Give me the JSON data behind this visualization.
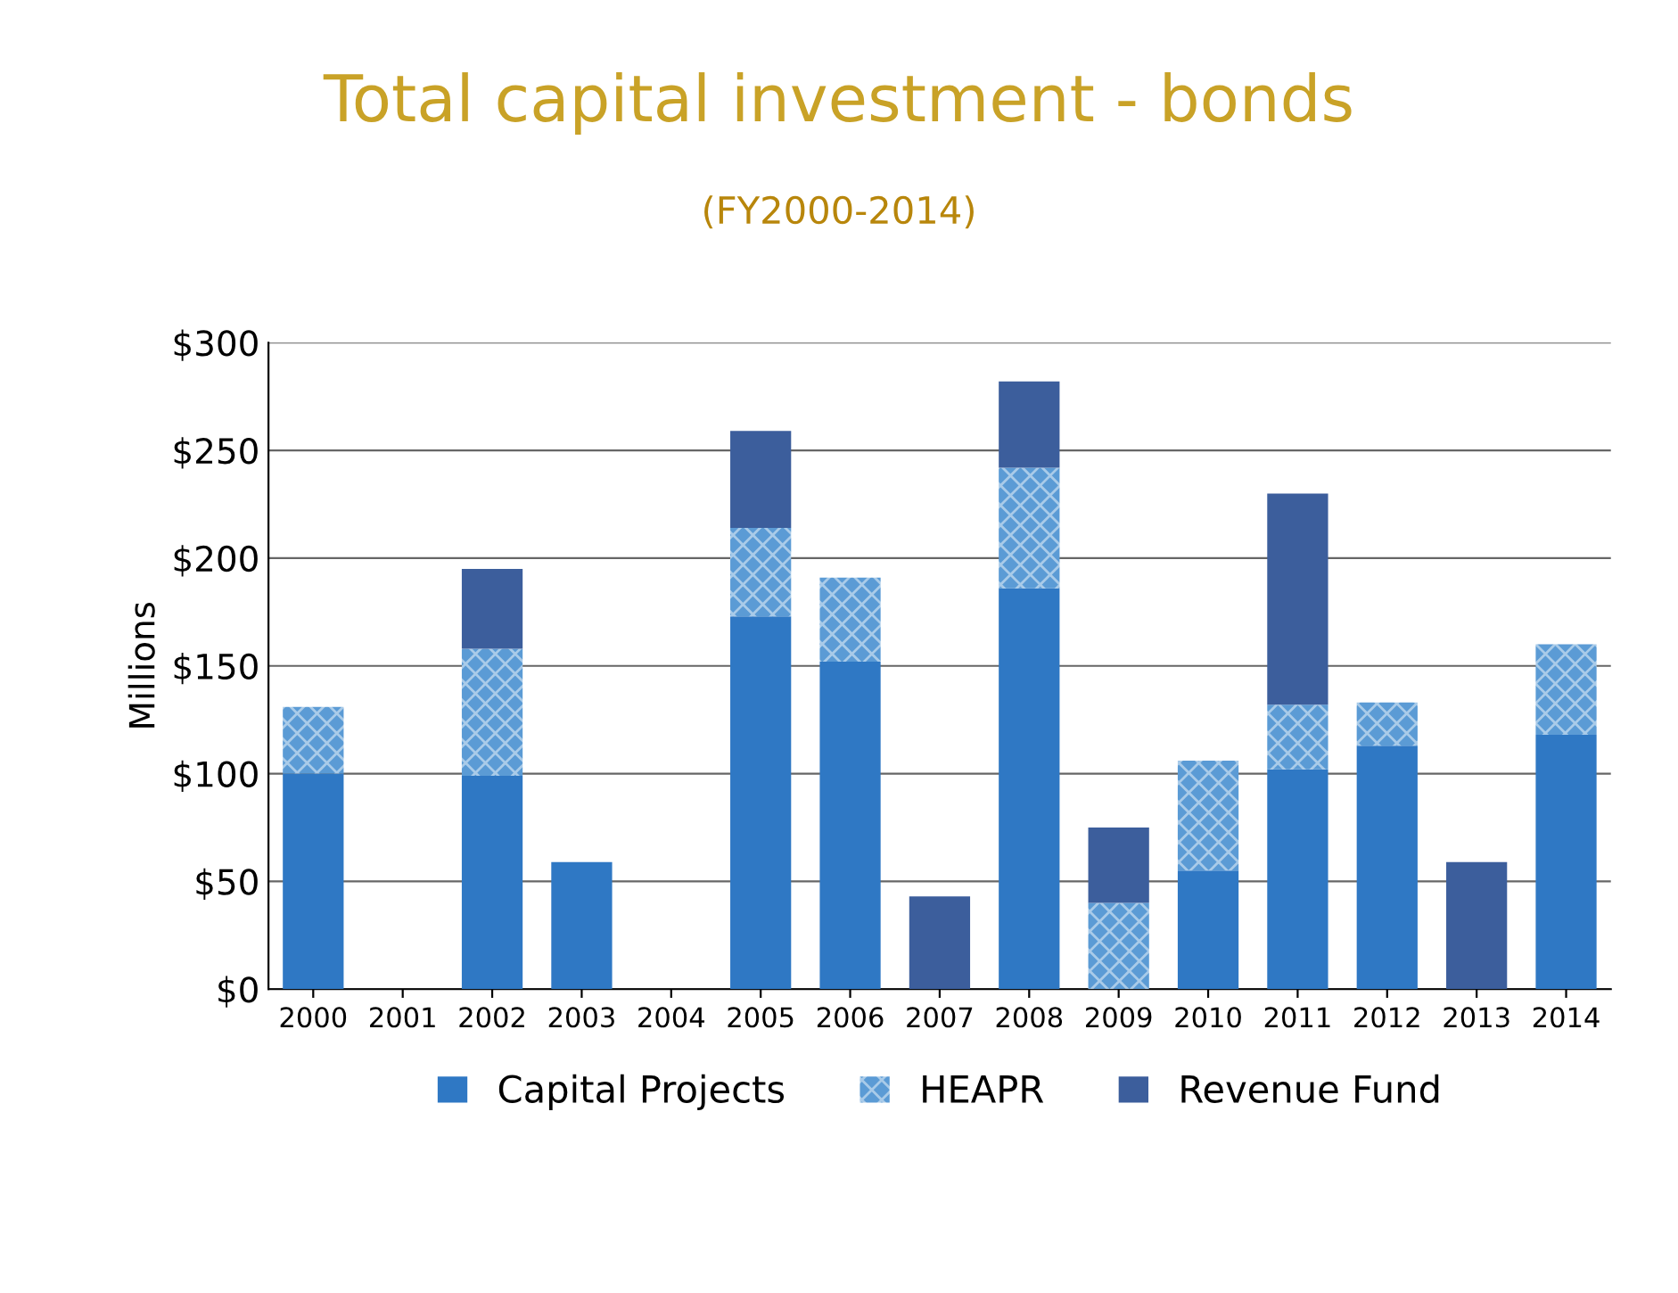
{
  "chart_data": {
    "type": "bar",
    "title": "Total capital investment - bonds",
    "subtitle": "(FY2000-2014)",
    "ylabel": "Millions",
    "stacked": true,
    "grid": "y",
    "legend": "bottom",
    "categories": [
      "2000",
      "2001",
      "2002",
      "2003",
      "2004",
      "2005",
      "2006",
      "2007",
      "2008",
      "2009",
      "2010",
      "2011",
      "2012",
      "2013",
      "2014"
    ],
    "ylim": [
      0,
      300
    ],
    "yticks": [
      {
        "value": 0,
        "label": "$0"
      },
      {
        "value": 50,
        "label": "$50"
      },
      {
        "value": 100,
        "label": "$100"
      },
      {
        "value": 150,
        "label": "$150"
      },
      {
        "value": 200,
        "label": "$200"
      },
      {
        "value": 250,
        "label": "$250"
      },
      {
        "value": 300,
        "label": "$300"
      }
    ],
    "series": [
      {
        "name": "Capital Projects",
        "color": "#2f78c4",
        "values": [
          100,
          0,
          99,
          59,
          0,
          173,
          152,
          0,
          186,
          0,
          55,
          102,
          113,
          0,
          118
        ]
      },
      {
        "name": "HEAPR",
        "color": "#5b9bd5",
        "values": [
          31,
          0,
          59,
          0,
          0,
          41,
          39,
          0,
          56,
          40,
          51,
          30,
          20,
          0,
          42
        ]
      },
      {
        "name": "Revenue Fund",
        "color": "#3c5e9c",
        "values": [
          0,
          0,
          37,
          0,
          0,
          45,
          0,
          43,
          40,
          35,
          0,
          98,
          0,
          59,
          0
        ]
      }
    ]
  }
}
